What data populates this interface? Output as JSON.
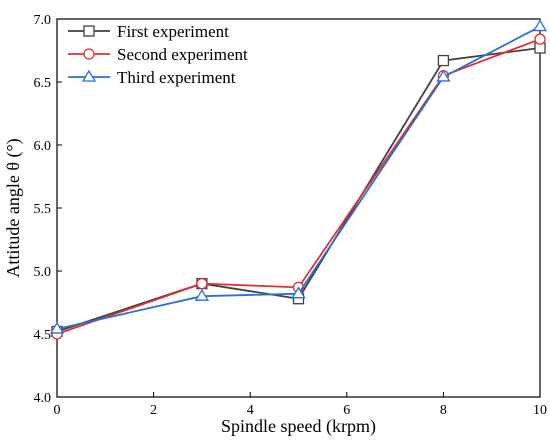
{
  "chart_data": {
    "type": "line",
    "xlabel": "Spindle speed (krpm)",
    "ylabel": "Attitude angle  θ (°)",
    "xlim": [
      0,
      10
    ],
    "ylim": [
      4.0,
      7.0
    ],
    "x_ticks": [
      "0",
      "2",
      "4",
      "6",
      "8",
      "10"
    ],
    "y_ticks": [
      "4.0",
      "4.5",
      "5.0",
      "5.5",
      "6.0",
      "6.5",
      "7.0"
    ],
    "grid": false,
    "legend_position": "top-left",
    "x": [
      0,
      3,
      5,
      8,
      10
    ],
    "series": [
      {
        "name": "First experiment",
        "marker": "square",
        "color": "#404040",
        "values": [
          4.52,
          4.9,
          4.78,
          6.67,
          6.77
        ]
      },
      {
        "name": "Second experiment",
        "marker": "circle",
        "color": "#e03030",
        "values": [
          4.5,
          4.9,
          4.87,
          6.55,
          6.84
        ]
      },
      {
        "name": "Third experiment",
        "marker": "triangle",
        "color": "#2a6fd6",
        "values": [
          4.54,
          4.8,
          4.82,
          6.54,
          6.94
        ]
      }
    ]
  }
}
